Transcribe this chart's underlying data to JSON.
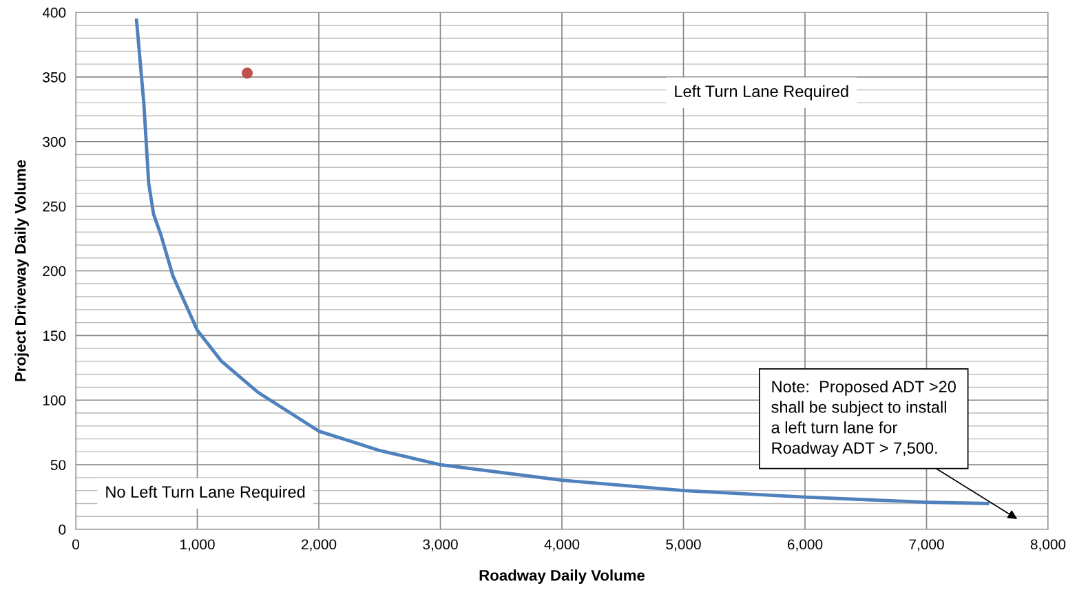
{
  "chart_data": {
    "type": "line",
    "xlabel": "Roadway Daily Volume",
    "ylabel": "Project Driveway Daily Volume",
    "xlim": [
      0,
      8000
    ],
    "ylim": [
      0,
      400
    ],
    "xticks": [
      {
        "value": 0,
        "label": "0"
      },
      {
        "value": 1000,
        "label": "1,000"
      },
      {
        "value": 2000,
        "label": "2,000"
      },
      {
        "value": 3000,
        "label": "3,000"
      },
      {
        "value": 4000,
        "label": "4,000"
      },
      {
        "value": 5000,
        "label": "5,000"
      },
      {
        "value": 6000,
        "label": "6,000"
      },
      {
        "value": 7000,
        "label": "7,000"
      },
      {
        "value": 8000,
        "label": "8,000"
      }
    ],
    "yticks": [
      0,
      50,
      100,
      150,
      200,
      250,
      300,
      350,
      400
    ],
    "grid": true,
    "legend": false,
    "series": [
      {
        "color": "#4f81bd",
        "marker": "none",
        "x": [
          500,
          560,
          600,
          640,
          700,
          800,
          900,
          1000,
          1200,
          1500,
          2000,
          2500,
          3000,
          4000,
          5000,
          6000,
          7000,
          7500
        ],
        "values": [
          394,
          330,
          268,
          244,
          228,
          196,
          175,
          154,
          130,
          106,
          76,
          61,
          50,
          38,
          30,
          25,
          21,
          20
        ]
      },
      {
        "type": "scatter",
        "color": "#c0504d",
        "marker": "circle",
        "x": [
          1411
        ],
        "values": [
          353
        ]
      }
    ],
    "annotations": [
      "Left Turn Lane Required",
      "No Left Turn Lane Required",
      "Note:  Proposed ADT >20\nshall be subject to install\na left turn lane for\nRoadway ADT > 7,500."
    ]
  }
}
